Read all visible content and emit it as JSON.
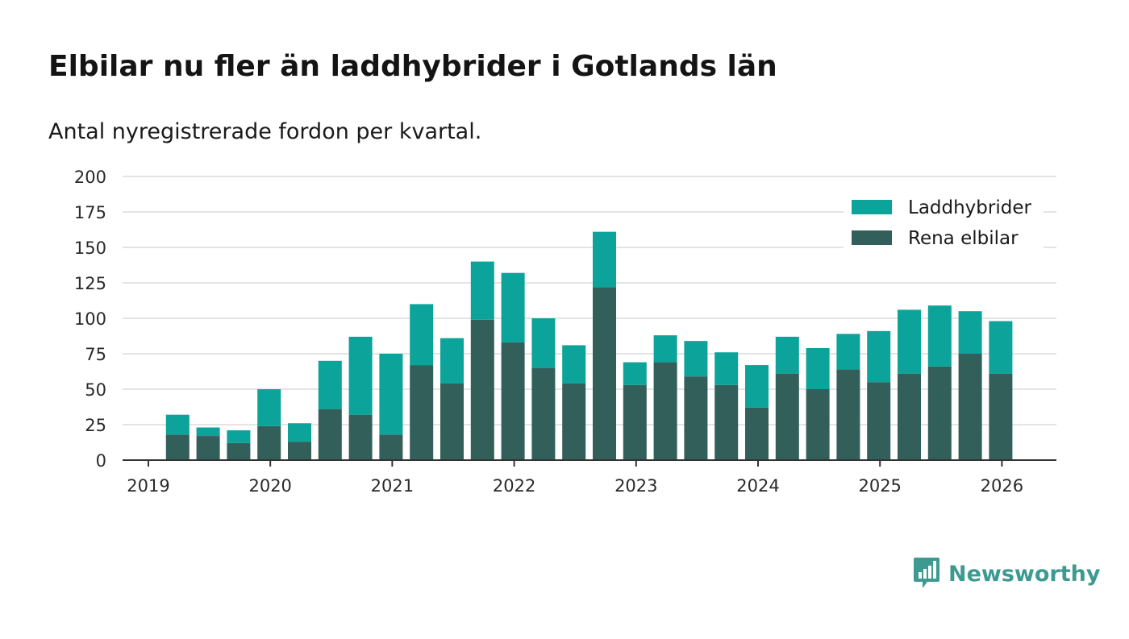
{
  "chart_data": {
    "type": "bar",
    "stacked": true,
    "title": "Elbilar nu fler än laddhybrider i Gotlands län",
    "subtitle": "Antal nyregistrerade fordon per kvartal.",
    "xlabel": "",
    "ylabel": "",
    "ylim": [
      0,
      200
    ],
    "y_ticks": [
      "0",
      "25",
      "50",
      "75",
      "100",
      "125",
      "150",
      "175",
      "200"
    ],
    "x_tick_labels": [
      "2019",
      "2020",
      "2021",
      "2022",
      "2023",
      "2024",
      "2025",
      "2026"
    ],
    "categories": [
      "2019 Q2",
      "2019 Q3",
      "2019 Q4",
      "2020 Q1",
      "2020 Q2",
      "2020 Q3",
      "2020 Q4",
      "2021 Q1",
      "2021 Q2",
      "2021 Q3",
      "2021 Q4",
      "2022 Q1",
      "2022 Q2",
      "2022 Q3",
      "2022 Q4",
      "2023 Q1",
      "2023 Q2",
      "2023 Q3",
      "2023 Q4",
      "2024 Q1",
      "2024 Q2",
      "2024 Q3",
      "2024 Q4",
      "2025 Q1",
      "2025 Q2",
      "2025 Q3",
      "2025 Q4",
      "2026 Q1"
    ],
    "series": [
      {
        "name": "Rena elbilar",
        "color": "#335f5b",
        "values": [
          18,
          17,
          12,
          24,
          13,
          36,
          32,
          18,
          67,
          54,
          99,
          83,
          65,
          54,
          122,
          53,
          69,
          59,
          53,
          37,
          61,
          50,
          64,
          55,
          61,
          66,
          75,
          61
        ]
      },
      {
        "name": "Laddhybrider",
        "color": "#0ba39a",
        "values": [
          14,
          6,
          9,
          26,
          13,
          34,
          55,
          57,
          43,
          32,
          41,
          49,
          35,
          27,
          39,
          16,
          19,
          25,
          23,
          30,
          26,
          29,
          25,
          36,
          45,
          43,
          30,
          37
        ]
      }
    ],
    "legend": [
      "Laddhybrider",
      "Rena elbilar"
    ],
    "legend_position": "top-right",
    "grid": true
  },
  "brand": {
    "name": "Newsworthy",
    "color": "#3c9a90"
  }
}
